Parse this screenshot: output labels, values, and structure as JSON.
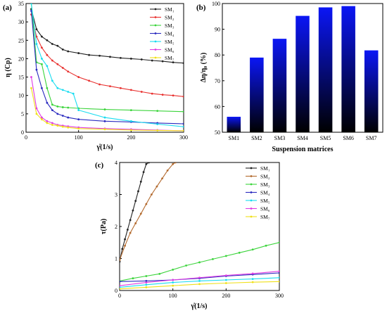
{
  "panels": {
    "a": "(a)",
    "b": "(b)",
    "c": "(c)"
  },
  "chart_data": [
    {
      "type": "line",
      "panel": "(a)",
      "xlabel": "γ̇(1/s)",
      "ylabel": "η (Cp)",
      "xlim": [
        0,
        300
      ],
      "ylim": [
        0,
        35
      ],
      "xticks": [
        0,
        100,
        200,
        300
      ],
      "yticks": [
        0,
        5,
        10,
        15,
        20,
        25,
        30,
        35
      ],
      "legend_position": "top-right",
      "series": [
        {
          "name": "SM₁",
          "color": "#222222",
          "x": [
            10,
            20,
            30,
            40,
            50,
            60,
            70,
            80,
            100,
            120,
            140,
            160,
            180,
            200,
            220,
            240,
            260,
            280,
            300
          ],
          "y": [
            33.5,
            28,
            26,
            25,
            24,
            23.5,
            22.5,
            22,
            21.5,
            21,
            20.8,
            20.5,
            20.2,
            20,
            19.8,
            19.5,
            19.3,
            19,
            18.8
          ]
        },
        {
          "name": "SM₂",
          "color": "#e8312f",
          "x": [
            10,
            20,
            30,
            40,
            50,
            60,
            70,
            80,
            100,
            120,
            140,
            160,
            180,
            200,
            220,
            240,
            260,
            280,
            300
          ],
          "y": [
            32,
            26,
            23,
            21,
            19.5,
            18.5,
            17.5,
            16.5,
            15,
            14,
            13,
            12.5,
            12,
            11.5,
            11,
            10.5,
            10.2,
            10,
            9.7
          ]
        },
        {
          "name": "SM₃",
          "color": "#3bd43b",
          "x": [
            10,
            20,
            30,
            40,
            50,
            60,
            70,
            80,
            100,
            150,
            200,
            250,
            300
          ],
          "y": [
            35,
            19,
            18.5,
            12,
            7.5,
            7,
            6.8,
            6.7,
            6.5,
            6.2,
            6,
            5.8,
            5.6
          ]
        },
        {
          "name": "SM₄",
          "color": "#2a2abf",
          "x": [
            10,
            20,
            30,
            40,
            50,
            60,
            70,
            80,
            100,
            150,
            200,
            250,
            300
          ],
          "y": [
            33,
            17,
            12,
            8,
            6,
            5,
            4.5,
            4,
            3.5,
            3,
            2.8,
            2.5,
            2.3
          ]
        },
        {
          "name": "SM₅",
          "color": "#19dcf0",
          "x": [
            10,
            20,
            30,
            40,
            50,
            60,
            70,
            80,
            90,
            100,
            150,
            200,
            250,
            300
          ],
          "y": [
            35,
            24,
            20,
            18,
            14,
            12,
            11.5,
            11,
            10.5,
            6,
            4,
            3,
            2.2,
            1.5
          ]
        },
        {
          "name": "SM₆",
          "color": "#df3ce3",
          "x": [
            10,
            20,
            30,
            40,
            50,
            60,
            70,
            80,
            100,
            150,
            200,
            250,
            300
          ],
          "y": [
            15,
            6.5,
            4,
            3,
            2.5,
            2,
            1.8,
            1.6,
            1.3,
            1,
            0.8,
            0.6,
            0.4
          ]
        },
        {
          "name": "SM₇",
          "color": "#f0e01a",
          "x": [
            10,
            20,
            30,
            40,
            50,
            60,
            70,
            80,
            100,
            150,
            200,
            250,
            300
          ],
          "y": [
            12,
            5,
            3.5,
            2.5,
            2,
            1.8,
            1.5,
            1.3,
            1,
            0.8,
            0.6,
            0.5,
            0.4
          ]
        }
      ]
    },
    {
      "type": "bar",
      "panel": "(b)",
      "xlabel": "Suspension matrices",
      "ylabel": "Δη/η₀ (%)",
      "categories": [
        "SM1",
        "SM2",
        "SM3",
        "SM4",
        "SM5",
        "SM6",
        "SM7"
      ],
      "values": [
        56,
        79,
        86.3,
        95.2,
        98.5,
        99,
        81.8
      ],
      "ylim": [
        50,
        100
      ],
      "yticks": [
        50,
        60,
        70,
        80,
        90,
        100
      ],
      "colors": {
        "top": "#0b16f5",
        "bottom": "#000000"
      }
    },
    {
      "type": "line",
      "panel": "(c)",
      "xlabel": "γ̇(1/s)",
      "ylabel": "τ(Pa)",
      "xlim": [
        0,
        300
      ],
      "ylim": [
        0,
        4
      ],
      "xticks": [
        0,
        100,
        200,
        300
      ],
      "yticks": [
        0,
        1,
        2,
        3,
        4
      ],
      "legend_position": "top-right",
      "series": [
        {
          "name": "SM₁",
          "color": "#222222",
          "x": [
            0,
            5,
            10,
            15,
            20,
            25,
            30,
            35,
            40,
            45,
            50,
            55
          ],
          "y": [
            0.9,
            1.3,
            1.6,
            1.9,
            2.2,
            2.5,
            2.8,
            3.1,
            3.4,
            3.7,
            3.95,
            4.0
          ]
        },
        {
          "name": "SM₂",
          "color": "#b36a2e",
          "x": [
            0,
            10,
            20,
            30,
            40,
            50,
            60,
            70,
            80,
            90,
            100,
            105
          ],
          "y": [
            0.95,
            1.4,
            1.8,
            2.1,
            2.4,
            2.7,
            3.0,
            3.25,
            3.5,
            3.75,
            3.95,
            4.0
          ]
        },
        {
          "name": "SM₃",
          "color": "#3bd43b",
          "x": [
            0,
            25,
            50,
            75,
            100,
            125,
            150,
            175,
            200,
            225,
            250,
            275,
            300
          ],
          "y": [
            0.3,
            0.38,
            0.45,
            0.52,
            0.65,
            0.78,
            0.88,
            0.98,
            1.08,
            1.18,
            1.28,
            1.4,
            1.5
          ]
        },
        {
          "name": "SM₄",
          "color": "#2a2abf",
          "x": [
            0,
            50,
            100,
            150,
            200,
            250,
            300
          ],
          "y": [
            0.28,
            0.3,
            0.33,
            0.38,
            0.45,
            0.5,
            0.55
          ]
        },
        {
          "name": "SM₅",
          "color": "#19dcf0",
          "x": [
            0,
            50,
            100,
            150,
            200,
            250,
            300
          ],
          "y": [
            0.1,
            0.18,
            0.25,
            0.3,
            0.33,
            0.36,
            0.4
          ]
        },
        {
          "name": "SM₆",
          "color": "#df3ce3",
          "x": [
            0,
            50,
            100,
            150,
            200,
            250,
            300
          ],
          "y": [
            0.15,
            0.25,
            0.33,
            0.4,
            0.47,
            0.53,
            0.6
          ]
        },
        {
          "name": "SM₇",
          "color": "#f0e01a",
          "x": [
            0,
            50,
            100,
            150,
            200,
            250,
            300
          ],
          "y": [
            0.05,
            0.1,
            0.15,
            0.2,
            0.23,
            0.26,
            0.28
          ]
        }
      ]
    }
  ]
}
